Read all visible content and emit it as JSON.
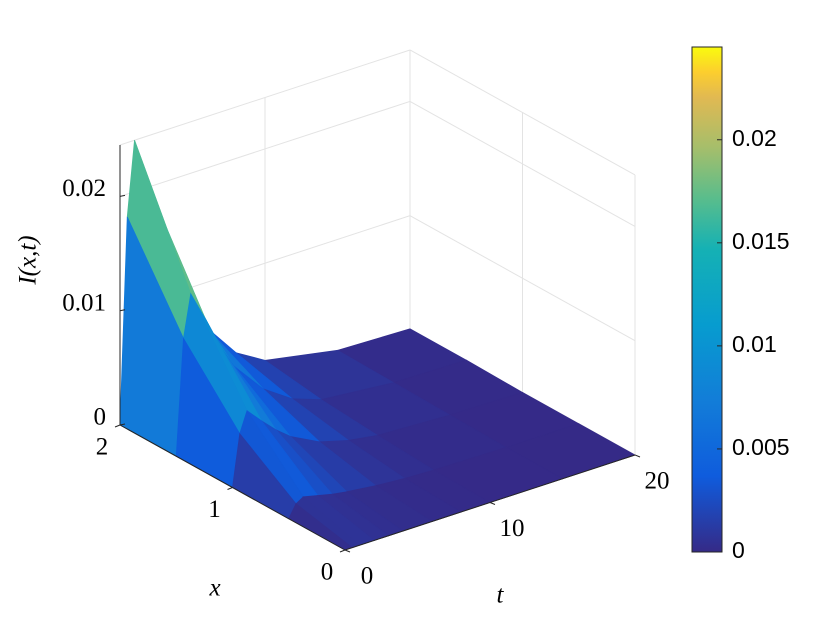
{
  "chart_data": {
    "type": "surface",
    "zlabel": "I(x,t)",
    "xlabel": "x",
    "tlabel": "t",
    "x": [
      0,
      0.5,
      1,
      1.5,
      2
    ],
    "t": [
      0,
      0.5,
      1,
      2,
      3,
      4,
      6,
      8,
      10,
      15,
      20
    ],
    "z": [
      [
        0,
        0,
        0,
        0,
        0,
        0,
        0,
        0,
        0,
        0,
        0
      ],
      [
        0,
        0.0011,
        0.0015,
        0.0012,
        0.0009,
        0.0007,
        0.0004,
        0.0002,
        0.0001,
        0,
        0
      ],
      [
        0,
        0.0045,
        0.0063,
        0.005,
        0.0038,
        0.0028,
        0.0015,
        0.0008,
        0.0004,
        0.0001,
        0
      ],
      [
        0,
        0.0101,
        0.0138,
        0.0112,
        0.0084,
        0.0062,
        0.0034,
        0.0017,
        0.0008,
        0.0002,
        0.0001
      ],
      [
        0,
        0.018,
        0.0245,
        0.02,
        0.015,
        0.011,
        0.006,
        0.003,
        0.0015,
        0.0003,
        0.0001
      ]
    ],
    "xlim": [
      0,
      2
    ],
    "xticks": [
      0,
      1,
      2
    ],
    "tlim": [
      0,
      20
    ],
    "tticks": [
      0,
      10,
      20
    ],
    "zlim": [
      0,
      0.0245
    ],
    "zticks": [
      0,
      0.01,
      0.02
    ],
    "colormap": "parula",
    "clim": [
      0,
      0.0245
    ],
    "cticks": [
      0,
      0.005,
      0.01,
      0.015,
      0.02
    ],
    "grid": true
  }
}
